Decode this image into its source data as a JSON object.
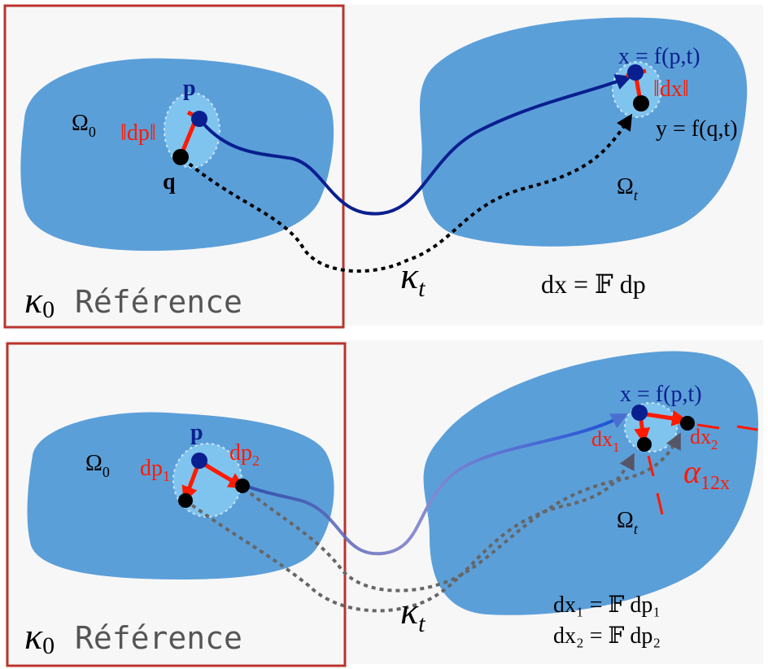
{
  "top": {
    "domain_ref": "Ω",
    "domain_ref_sub": "0",
    "domain_cur": "Ω",
    "domain_cur_sub": "t",
    "point_p": "p",
    "point_q": "q",
    "dp_norm": "‖dp‖",
    "dx_norm": "‖dx‖",
    "x_eq": "x = f(p,t)",
    "y_eq": "y = f(q,t)",
    "kappa0": "κ",
    "kappa0_sub": "0",
    "reference_label": "Référence",
    "kappat": "κ",
    "kappat_sub": "t",
    "relation": "dx = 𝔽 dp"
  },
  "bottom": {
    "domain_ref": "Ω",
    "domain_ref_sub": "0",
    "domain_cur": "Ω",
    "domain_cur_sub": "t",
    "point_p": "p",
    "dp1": "dp",
    "dp1_sub": "1",
    "dp2": "dp",
    "dp2_sub": "2",
    "dx1": "dx",
    "dx1_sub": "1",
    "dx2": "dx",
    "dx2_sub": "2",
    "x_eq": "x = f(p,t)",
    "alpha": "α",
    "alpha_sub": "12x",
    "kappa0": "κ",
    "kappa0_sub": "0",
    "reference_label": "Référence",
    "kappat": "κ",
    "kappat_sub": "t",
    "relation1": "dx₁ = 𝔽 dp₁",
    "relation2": "dx₂ = 𝔽 dp₂"
  },
  "colors": {
    "frame": "#b8352e",
    "blob": "#5b9fd9",
    "path_solid": "#0a1f8f",
    "vector_red": "#ff1a00",
    "label_navy": "#0a1f8f"
  }
}
